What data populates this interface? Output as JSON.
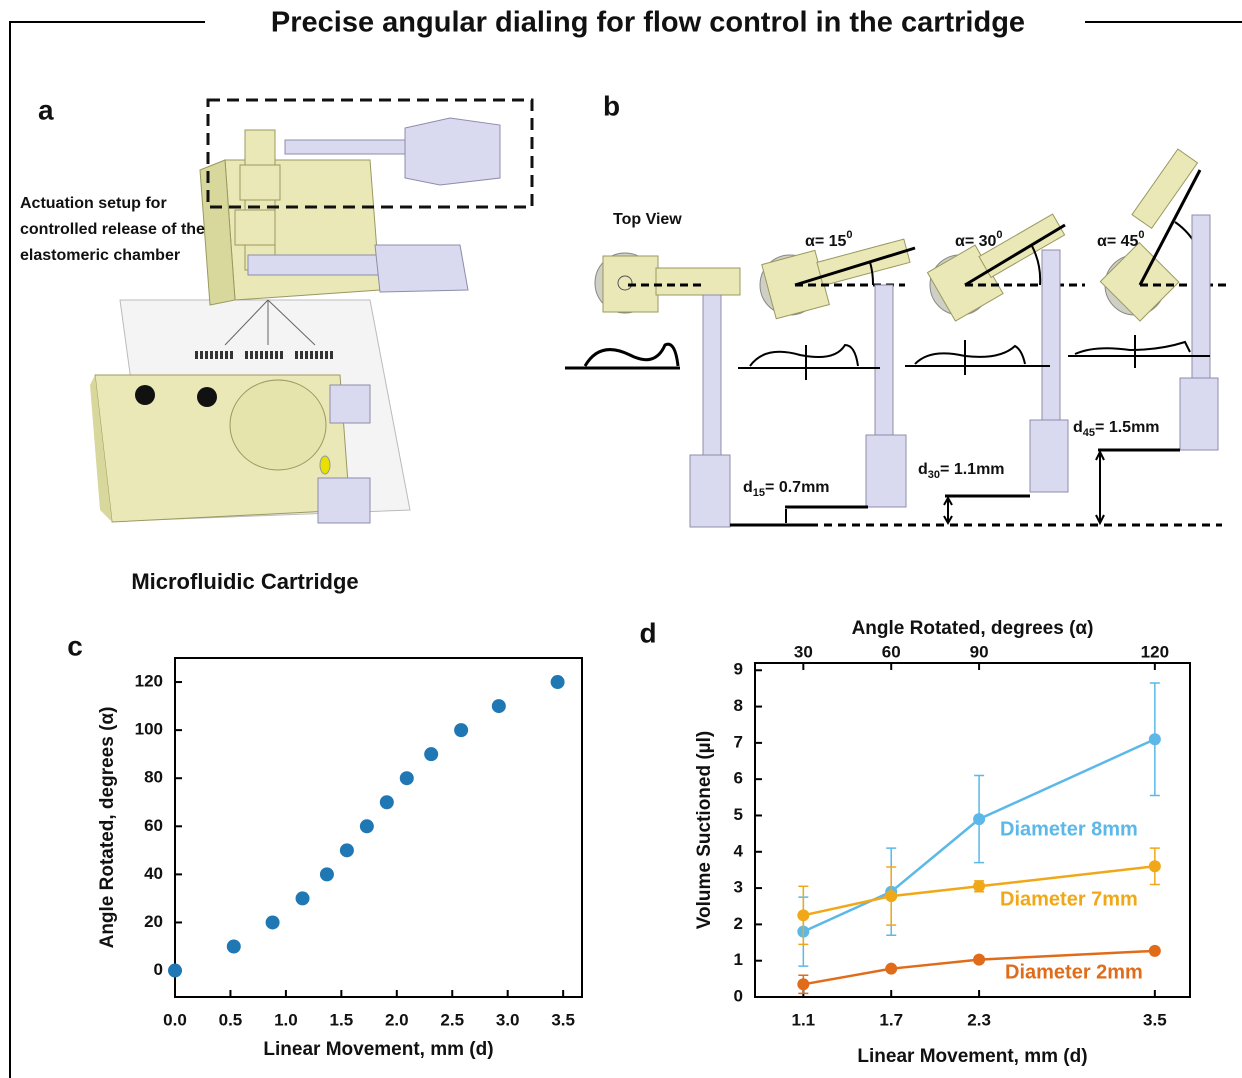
{
  "title": "Precise angular dialing for flow control in the cartridge",
  "panel_a": {
    "label": "a",
    "annotation": [
      "Actuation setup for",
      "controlled release of the",
      "elastomeric chamber"
    ],
    "caption": "Microfluidic Cartridge"
  },
  "panel_b": {
    "label": "b",
    "top_view": "Top View",
    "angles": [
      {
        "text": "α= 15",
        "sup": "0"
      },
      {
        "text": "α= 30",
        "sup": "0"
      },
      {
        "text": "α= 45",
        "sup": "0"
      }
    ],
    "distances": [
      {
        "symbol": "d",
        "sub": "15",
        "text": "= 0.7mm"
      },
      {
        "symbol": "d",
        "sub": "30",
        "text": "= 1.1mm"
      },
      {
        "symbol": "d",
        "sub": "45",
        "text": "= 1.5mm"
      }
    ]
  },
  "chart_data": [
    {
      "panel": "c",
      "type": "scatter",
      "x_label": "Linear Movement, mm (d)",
      "y_label": "Angle Rotated, degrees (α)",
      "x": [
        0,
        0.53,
        0.88,
        1.15,
        1.37,
        1.55,
        1.73,
        1.91,
        2.09,
        2.31,
        2.58,
        2.92,
        3.45
      ],
      "values": [
        0,
        10,
        20,
        30,
        40,
        50,
        60,
        70,
        80,
        90,
        100,
        110,
        120
      ],
      "color": "#1f77b4",
      "xlim": [
        0,
        3.67
      ],
      "ylim": [
        -11,
        130
      ],
      "xticks": [
        {
          "value": 0,
          "label": "0.0"
        },
        {
          "value": 0.5,
          "label": "0.5"
        },
        {
          "value": 1,
          "label": "1.0"
        },
        {
          "value": 1.5,
          "label": "1.5"
        },
        {
          "value": 2,
          "label": "2.0"
        },
        {
          "value": 2.5,
          "label": "2.5"
        },
        {
          "value": 3,
          "label": "3.0"
        },
        {
          "value": 3.5,
          "label": "3.5"
        }
      ],
      "yticks": [
        0,
        20,
        40,
        60,
        80,
        100,
        120
      ]
    },
    {
      "panel": "d",
      "type": "line",
      "x_label": "Linear Movement, mm (d)",
      "x2_label": "Angle Rotated, degrees (α)",
      "y_label": "Volume Suctioned (µl)",
      "x": [
        1.1,
        1.7,
        2.3,
        3.5
      ],
      "series": [
        {
          "name": "Diameter 8mm",
          "color": "#5bb8e8",
          "values": [
            1.8,
            2.9,
            4.9,
            7.1
          ],
          "errors": [
            0.95,
            1.2,
            1.2,
            1.55
          ]
        },
        {
          "name": "Diameter 7mm",
          "color": "#f0a818",
          "values": [
            2.25,
            2.78,
            3.05,
            3.6
          ],
          "errors": [
            0.8,
            0.8,
            0.15,
            0.5
          ]
        },
        {
          "name": "Diameter 2mm",
          "color": "#e06c1a",
          "values": [
            0.35,
            0.78,
            1.03,
            1.27
          ],
          "errors": [
            0.25,
            0.05,
            0.08,
            0.05
          ]
        }
      ],
      "xlim": [
        0.77,
        3.74
      ],
      "ylim": [
        0,
        9.2
      ],
      "xticks": [
        1.1,
        1.7,
        2.3,
        3.5
      ],
      "x2ticks": [
        30,
        60,
        90,
        120
      ],
      "yticks": [
        0,
        1,
        2,
        3,
        4,
        5,
        6,
        7,
        8,
        9
      ]
    }
  ]
}
